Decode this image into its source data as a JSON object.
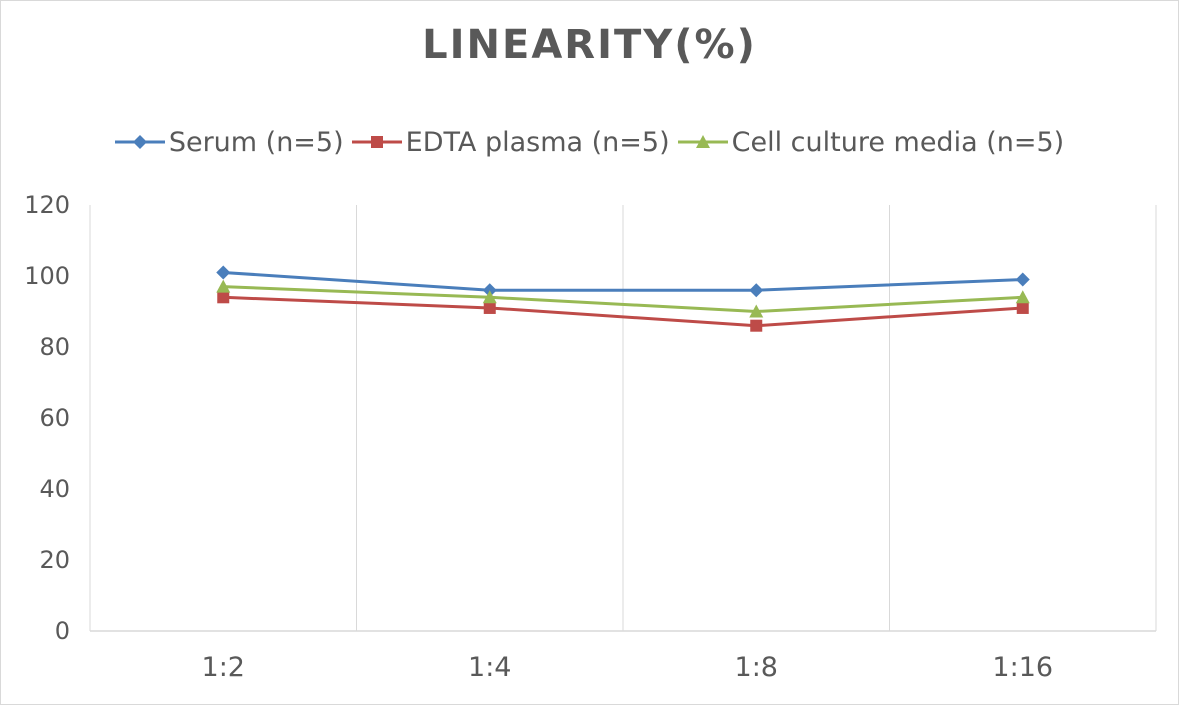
{
  "chart_data": {
    "type": "line",
    "title": "LINEARITY(%)",
    "xlabel": "",
    "ylabel": "",
    "categories": [
      "1:2",
      "1:4",
      "1:8",
      "1:16"
    ],
    "ylim": [
      0,
      120
    ],
    "yticks": [
      0,
      20,
      40,
      60,
      80,
      100,
      120
    ],
    "grid": "vertical",
    "legend_position": "top",
    "series": [
      {
        "name": "Serum (n=5)",
        "values": [
          101,
          96,
          96,
          99
        ],
        "color": "#4a7ebb",
        "marker": "diamond"
      },
      {
        "name": "EDTA plasma (n=5)",
        "values": [
          94,
          91,
          86,
          91
        ],
        "color": "#be4b48",
        "marker": "square"
      },
      {
        "name": "Cell culture media (n=5)",
        "values": [
          97,
          94,
          90,
          94
        ],
        "color": "#98b954",
        "marker": "triangle"
      }
    ]
  }
}
